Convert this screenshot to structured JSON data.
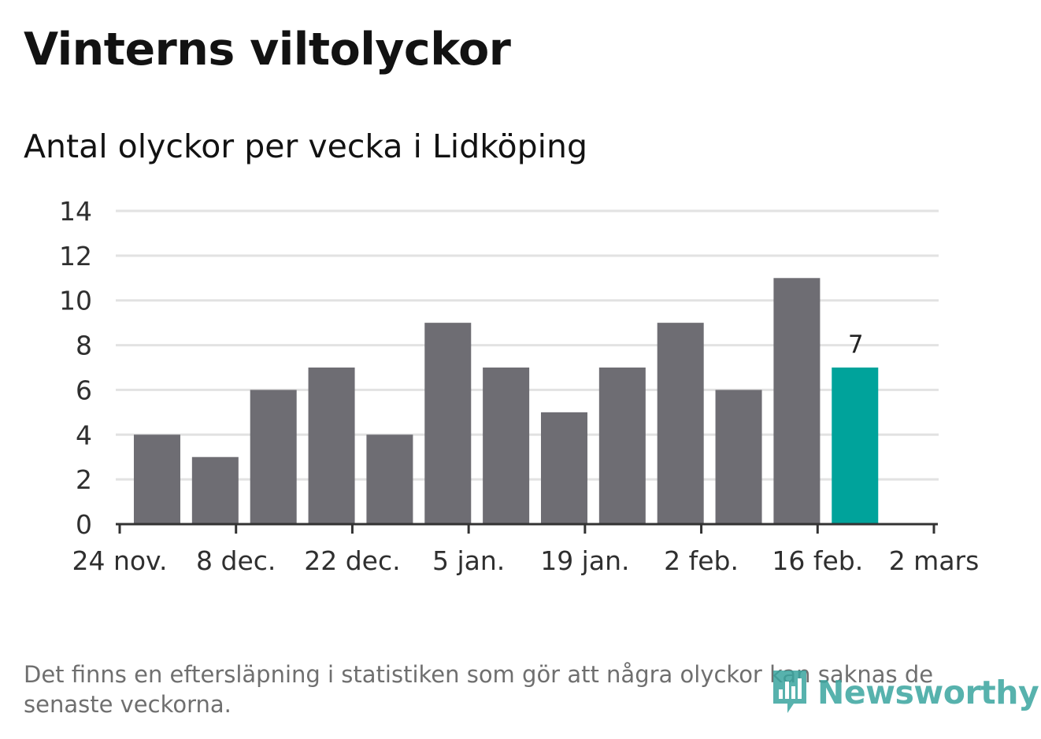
{
  "title": "Vinterns viltolyckor",
  "subtitle": "Antal olyckor per vecka i Lidköping",
  "footnote": "Det finns en eftersläpning i statistiken som gör att några olyckor kan saknas de senaste veckorna.",
  "logo": {
    "text": "Newsworthy",
    "icon": "newsworthy-logo-icon"
  },
  "colors": {
    "bar": "#6e6d73",
    "highlight": "#00a39b",
    "grid": "#e2e2e2",
    "axis": "#333333"
  },
  "chart_data": {
    "type": "bar",
    "title": "Vinterns viltolyckor",
    "subtitle": "Antal olyckor per vecka i Lidköping",
    "x": [
      "2019-11-25",
      "2019-12-02",
      "2019-12-09",
      "2019-12-16",
      "2019-12-23",
      "2019-12-30",
      "2020-01-06",
      "2020-01-13",
      "2020-01-20",
      "2020-01-27",
      "2020-02-03",
      "2020-02-10",
      "2020-02-17"
    ],
    "values": [
      4,
      3,
      6,
      7,
      4,
      9,
      7,
      5,
      7,
      9,
      6,
      11,
      7
    ],
    "highlight_index": 12,
    "data_labels": [
      {
        "index": 12,
        "text": "7"
      }
    ],
    "xticks": [
      "24 nov.",
      "8 dec.",
      "22 dec.",
      "5 jan.",
      "19 jan.",
      "2 feb.",
      "16 feb.",
      "2 mars"
    ],
    "xtick_dates": [
      "2019-11-24",
      "2019-12-08",
      "2019-12-22",
      "2020-01-05",
      "2020-01-19",
      "2020-02-02",
      "2020-02-16",
      "2020-03-01"
    ],
    "yticks": [
      "0",
      "2",
      "4",
      "6",
      "8",
      "10",
      "12",
      "14"
    ],
    "ylim": [
      0,
      14
    ],
    "grid": true,
    "legend": "none"
  }
}
